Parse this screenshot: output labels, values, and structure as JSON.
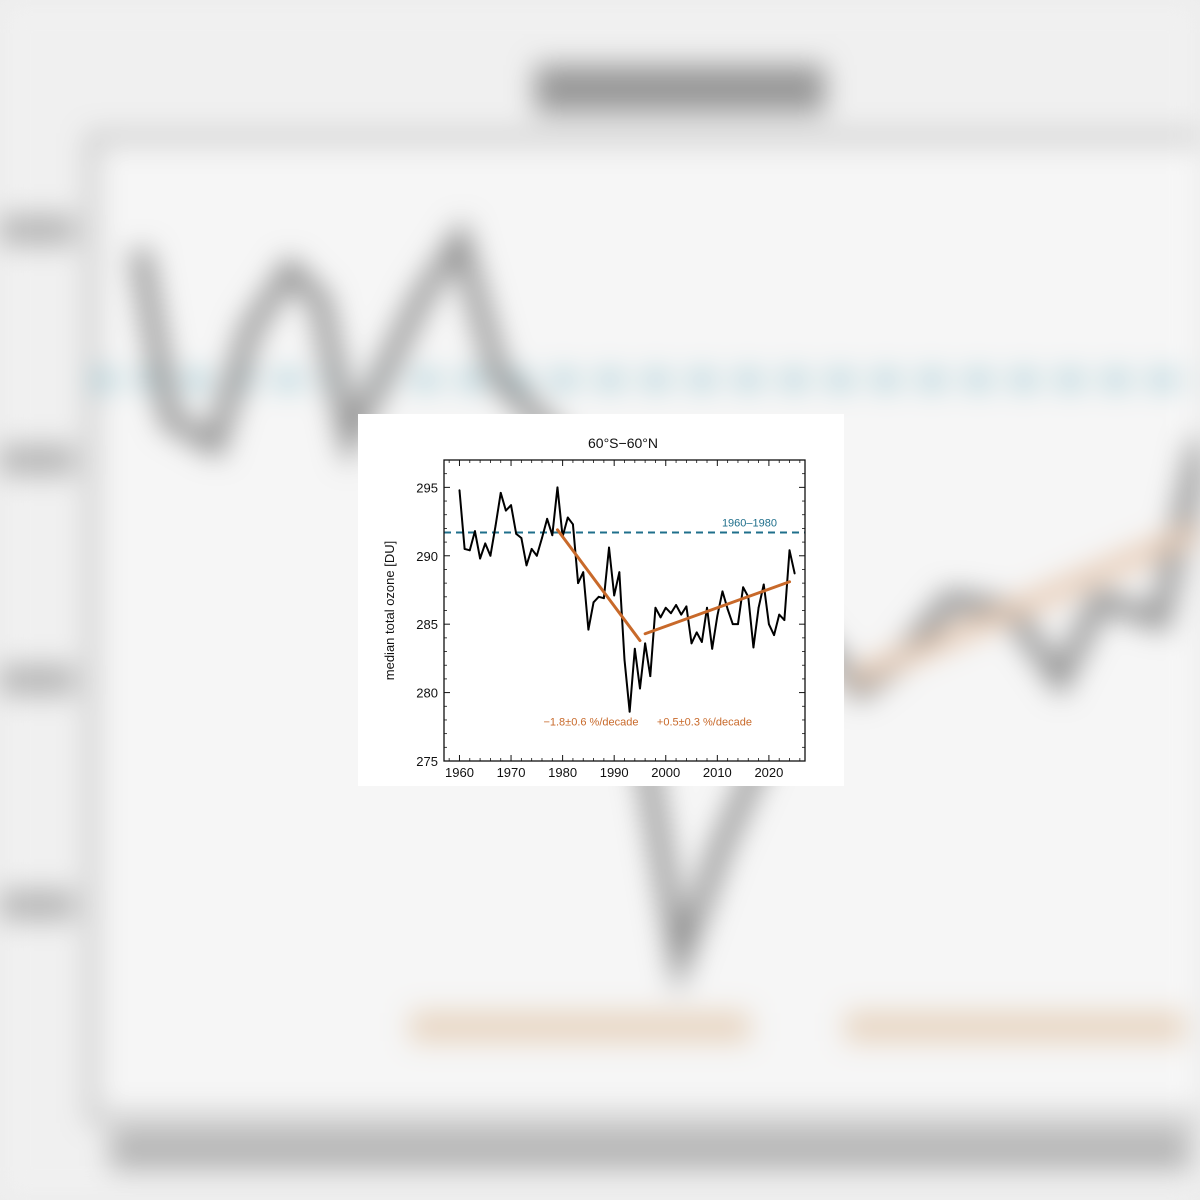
{
  "chart_data": {
    "type": "line",
    "title": "60°S−60°N",
    "xlabel": "",
    "ylabel": "median total ozone [DU]",
    "xlim": [
      1957,
      2027
    ],
    "ylim": [
      275,
      297
    ],
    "x_ticks": [
      1960,
      1970,
      1980,
      1990,
      2000,
      2010,
      2020
    ],
    "y_ticks": [
      275,
      280,
      285,
      290,
      295
    ],
    "grid": false,
    "series": [
      {
        "name": "",
        "color": "#000000",
        "x": [
          1960,
          1961,
          1962,
          1963,
          1964,
          1965,
          1966,
          1967,
          1968,
          1969,
          1970,
          1971,
          1972,
          1973,
          1974,
          1975,
          1976,
          1977,
          1978,
          1979,
          1980,
          1981,
          1982,
          1983,
          1984,
          1985,
          1986,
          1987,
          1988,
          1989,
          1990,
          1991,
          1992,
          1993,
          1994,
          1995,
          1996,
          1997,
          1998,
          1999,
          2000,
          2001,
          2002,
          2003,
          2004,
          2005,
          2006,
          2007,
          2008,
          2009,
          2010,
          2011,
          2012,
          2013,
          2014,
          2015,
          2016,
          2017,
          2018,
          2019,
          2020,
          2021,
          2022,
          2023,
          2024,
          2025
        ],
        "y": [
          294.8,
          290.5,
          290.4,
          291.8,
          289.8,
          290.9,
          290.0,
          292.2,
          294.6,
          293.3,
          293.7,
          291.6,
          291.3,
          289.3,
          290.5,
          290.0,
          291.3,
          292.7,
          291.5,
          295.0,
          291.4,
          292.8,
          292.3,
          288.0,
          288.8,
          284.6,
          286.6,
          287.0,
          286.9,
          290.6,
          287.1,
          288.8,
          282.4,
          278.6,
          283.2,
          280.3,
          283.6,
          281.2,
          286.2,
          285.5,
          286.2,
          285.8,
          286.4,
          285.7,
          286.3,
          283.6,
          284.4,
          283.7,
          286.2,
          283.2,
          285.6,
          287.4,
          286.1,
          285.0,
          285.0,
          287.7,
          287.0,
          283.3,
          286.2,
          287.9,
          285.0,
          284.2,
          285.7,
          285.3,
          290.4,
          288.7
        ]
      }
    ],
    "reference_line": {
      "label": "1960–1980",
      "y": 291.7,
      "color": "#1f6f8b"
    },
    "trends": [
      {
        "label": "−1.8±0.6 %/decade",
        "x": [
          1979,
          1995
        ],
        "y": [
          291.9,
          283.8
        ],
        "color": "#c8692a"
      },
      {
        "label": "+0.5±0.3 %/decade",
        "x": [
          1996,
          2024
        ],
        "y": [
          284.3,
          288.1
        ],
        "color": "#c8692a"
      }
    ]
  }
}
